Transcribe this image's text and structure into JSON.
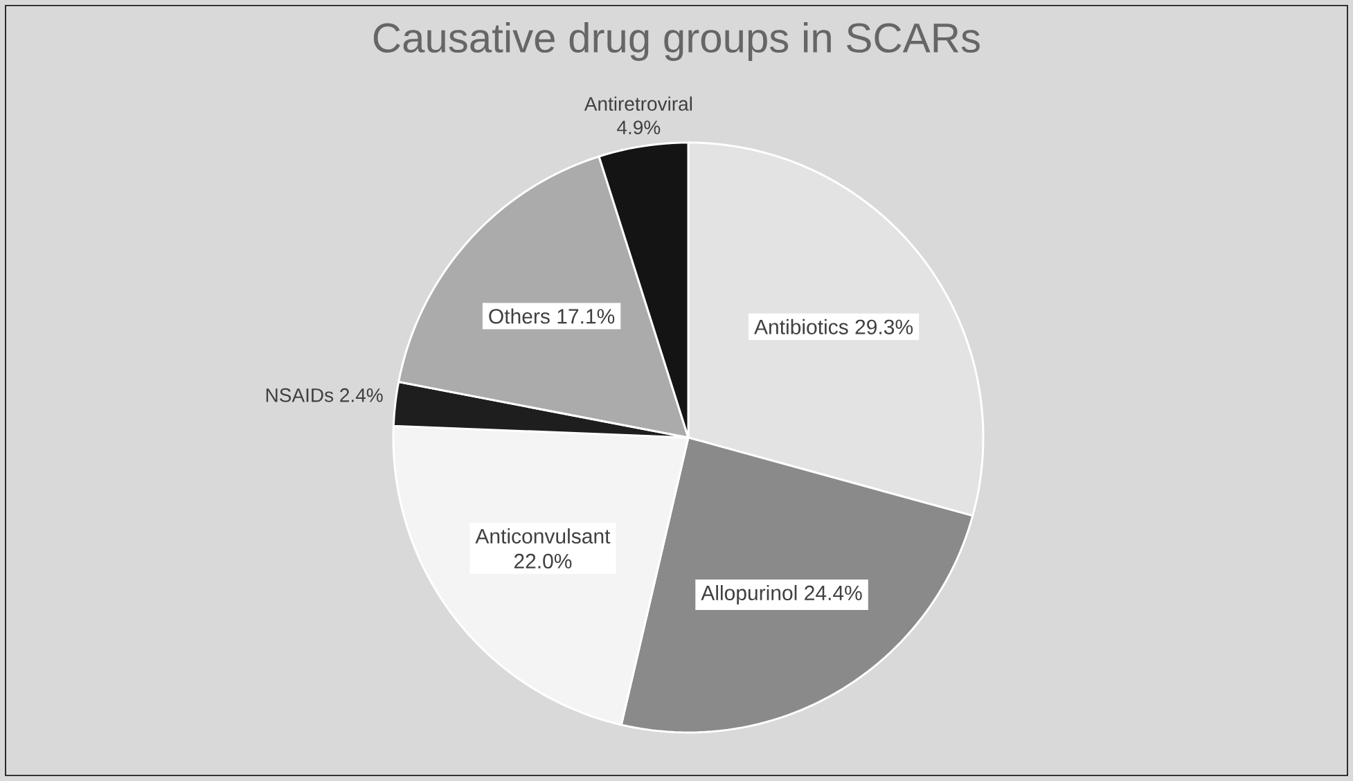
{
  "chart_data": {
    "type": "pie",
    "title": "Causative drug groups in SCARs",
    "categories": [
      "Antibiotics",
      "Allopurinol",
      "Anticonvulsant",
      "NSAIDs",
      "Others",
      "Antiretroviral"
    ],
    "values": [
      29.3,
      24.4,
      22.0,
      2.4,
      17.1,
      4.9
    ],
    "value_labels": [
      "29.3%",
      "24.4%",
      "22.0%",
      "2.4%",
      "17.1%",
      "4.9%"
    ],
    "colors": [
      "#e3e3e3",
      "#8a8a8a",
      "#f4f4f4",
      "#1e1e1e",
      "#ababab",
      "#141414"
    ]
  }
}
